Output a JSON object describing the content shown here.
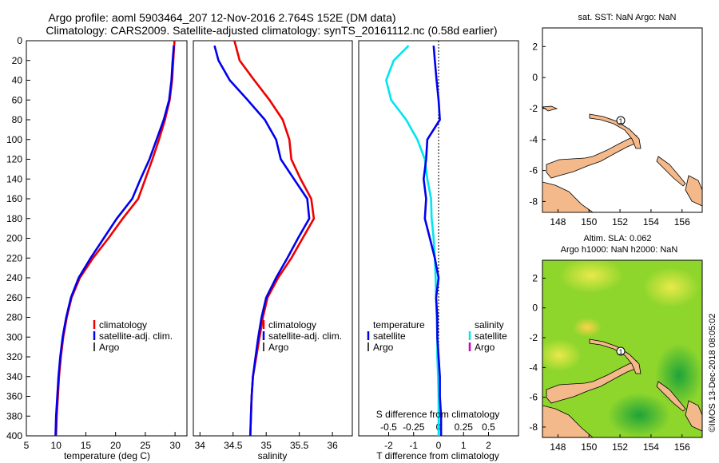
{
  "header": {
    "title_line1": "Argo profile: aoml 5903464_207 12-Nov-2016 2.764S 152E (DM data)",
    "title_line2": "Climatology: CARS2009. Satellite-adjusted climatology: synTS_20161112.nc (0.58d earlier)"
  },
  "colors": {
    "climatology": "#ee0000",
    "satellite_adj": "#0000ee",
    "argo": "#000000",
    "salinity_satellite": "#00e5ee",
    "salinity_argo": "#cc00cc",
    "land": "#f4b98a",
    "sla_field": "#7ed321"
  },
  "chart_data": [
    {
      "type": "line",
      "name": "temperature-panel",
      "xlabel": "temperature (deg C)",
      "ylabel": "",
      "xlim": [
        5,
        32
      ],
      "ylim": [
        400,
        0
      ],
      "xticks": [
        5,
        10,
        15,
        20,
        25,
        30
      ],
      "yticks": [
        0,
        20,
        40,
        60,
        80,
        100,
        120,
        140,
        160,
        180,
        200,
        220,
        240,
        260,
        280,
        300,
        320,
        340,
        360,
        380,
        400
      ],
      "legend": [
        "climatology",
        "satellite-adj. clim.",
        "Argo"
      ],
      "series": [
        {
          "name": "climatology",
          "color": "#ee0000",
          "depth": [
            0,
            20,
            40,
            60,
            80,
            100,
            120,
            140,
            160,
            180,
            200,
            220,
            240,
            260,
            280,
            300,
            320,
            340,
            360,
            380,
            400
          ],
          "values": [
            29.9,
            29.7,
            29.5,
            29.1,
            28.3,
            27.3,
            26.2,
            25.0,
            23.8,
            21.2,
            18.8,
            16.2,
            14.0,
            12.6,
            11.8,
            11.2,
            10.8,
            10.5,
            10.3,
            10.1,
            10.0
          ]
        },
        {
          "name": "satellite-adj. clim.",
          "color": "#0000ee",
          "depth": [
            5,
            20,
            40,
            60,
            80,
            100,
            120,
            140,
            160,
            180,
            200,
            220,
            240,
            260,
            280,
            300,
            320,
            340,
            360,
            380,
            400
          ],
          "values": [
            29.8,
            29.6,
            29.4,
            29.0,
            28.1,
            26.9,
            25.7,
            24.2,
            22.8,
            20.2,
            18.0,
            15.8,
            13.8,
            12.5,
            11.7,
            11.1,
            10.7,
            10.4,
            10.2,
            10.0,
            9.9
          ]
        }
      ]
    },
    {
      "type": "line",
      "name": "salinity-panel",
      "xlabel": "salinity",
      "ylabel": "",
      "xlim": [
        33.9,
        36.3
      ],
      "ylim": [
        400,
        0
      ],
      "xticks": [
        34,
        34.5,
        35,
        35.5,
        36
      ],
      "legend": [
        "climatology",
        "satellite-adj. clim.",
        "Argo"
      ],
      "series": [
        {
          "name": "climatology",
          "color": "#ee0000",
          "depth": [
            0,
            20,
            40,
            60,
            80,
            100,
            120,
            140,
            160,
            180,
            200,
            220,
            240,
            260,
            280,
            300,
            320,
            340,
            360,
            380,
            400
          ],
          "values": [
            34.52,
            34.6,
            34.82,
            35.05,
            35.25,
            35.35,
            35.38,
            35.52,
            35.68,
            35.72,
            35.55,
            35.38,
            35.18,
            35.02,
            34.95,
            34.9,
            34.85,
            34.8,
            34.78,
            34.77,
            34.76
          ]
        },
        {
          "name": "satellite-adj. clim.",
          "color": "#0000ee",
          "depth": [
            5,
            20,
            40,
            60,
            80,
            100,
            120,
            140,
            160,
            180,
            200,
            220,
            240,
            260,
            280,
            300,
            320,
            340,
            360,
            380,
            400
          ],
          "values": [
            34.22,
            34.28,
            34.45,
            34.72,
            34.98,
            35.15,
            35.22,
            35.42,
            35.62,
            35.65,
            35.48,
            35.32,
            35.15,
            35.0,
            34.93,
            34.88,
            34.84,
            34.8,
            34.78,
            34.77,
            34.76
          ]
        }
      ]
    },
    {
      "type": "line",
      "name": "difference-panel",
      "xlabel": "T difference from climatology",
      "xlabel_top": "S difference from climatology",
      "xlim": [
        -3.2,
        3.2
      ],
      "ylim": [
        400,
        0
      ],
      "xticks_T": [
        -2,
        -1,
        0,
        1,
        2
      ],
      "xticks_S": [
        "-0.5",
        "-0.25",
        "0",
        "0.25",
        "0.5"
      ],
      "legend_temperature": {
        "title": "temperature",
        "items": [
          "satellite",
          "Argo"
        ]
      },
      "legend_salinity": {
        "title": "salinity",
        "items": [
          "satellite",
          "Argo"
        ]
      },
      "series": [
        {
          "name": "temperature satellite",
          "color": "#0000ee",
          "depth": [
            5,
            20,
            40,
            60,
            80,
            100,
            120,
            140,
            160,
            180,
            200,
            220,
            240,
            260,
            280,
            300,
            320,
            340,
            360,
            380,
            400
          ],
          "values": [
            -0.2,
            -0.15,
            -0.08,
            0.0,
            0.05,
            -0.45,
            -0.5,
            -0.6,
            -0.5,
            -0.55,
            -0.35,
            -0.15,
            0.0,
            -0.1,
            -0.05,
            -0.05,
            0.0,
            0.05,
            0.05,
            0.1,
            0.1
          ]
        },
        {
          "name": "salinity satellite",
          "color": "#00e5ee",
          "depth": [
            5,
            20,
            40,
            60,
            80,
            100,
            120,
            140,
            160,
            180,
            200,
            220,
            240,
            260,
            280,
            300,
            320,
            340,
            360,
            380,
            400
          ],
          "values": [
            -1.2,
            -1.8,
            -2.1,
            -1.9,
            -1.3,
            -0.85,
            -0.55,
            -0.45,
            -0.3,
            -0.28,
            -0.2,
            -0.15,
            -0.12,
            -0.1,
            -0.08,
            -0.05,
            -0.05,
            -0.02,
            0.0,
            0.0,
            0.0
          ]
        }
      ]
    },
    {
      "type": "map",
      "name": "sst-map",
      "title": "sat. SST: NaN Argo: NaN",
      "xlim": [
        147,
        157.3
      ],
      "ylim": [
        -8.7,
        3.2
      ],
      "xticks": [
        148,
        150,
        152,
        154,
        156
      ],
      "yticks": [
        2,
        0,
        -2,
        -4,
        -6,
        -8
      ],
      "profile_marker": {
        "lon": 152,
        "lat": -2.764,
        "label": "1"
      }
    },
    {
      "type": "map",
      "name": "sla-map",
      "title_line1": "Altim. SLA: 0.062",
      "title_line2": "Argo h1000: NaN h2000: NaN",
      "xlim": [
        147,
        157.3
      ],
      "ylim": [
        -8.7,
        3.2
      ],
      "xticks": [
        148,
        150,
        152,
        154,
        156
      ],
      "yticks": [
        2,
        0,
        -2,
        -4,
        -6,
        -8
      ],
      "profile_marker": {
        "lon": 152,
        "lat": -2.764,
        "label": "1"
      }
    }
  ],
  "footer": {
    "stamp": "©IMOS 13-Dec-2018 08:05:02"
  }
}
